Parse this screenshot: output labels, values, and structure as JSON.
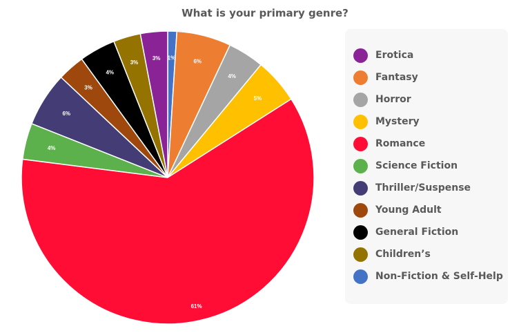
{
  "chart_data": {
    "type": "pie",
    "title": "What is your primary genre?",
    "slices": [
      {
        "label": "Non-Fiction & Self-Help",
        "value": 1,
        "data_label": "1%",
        "color": "#4472c4"
      },
      {
        "label": "Fantasy",
        "value": 6,
        "data_label": "6%",
        "color": "#ed7d31"
      },
      {
        "label": "Horror",
        "value": 4,
        "data_label": "4%",
        "color": "#a5a5a5"
      },
      {
        "label": "Mystery",
        "value": 5,
        "data_label": "5%",
        "color": "#ffc000"
      },
      {
        "label": "Romance",
        "value": 61,
        "data_label": "61%",
        "color": "#ff0d35"
      },
      {
        "label": "Science Fiction",
        "value": 4,
        "data_label": "4%",
        "color": "#5cb14d"
      },
      {
        "label": "Thriller/Suspense",
        "value": 6,
        "data_label": "6%",
        "color": "#443c75"
      },
      {
        "label": "Young Adult",
        "value": 3,
        "data_label": "3%",
        "color": "#9e480e"
      },
      {
        "label": "General Fiction",
        "value": 4,
        "data_label": "4%",
        "color": "#000000"
      },
      {
        "label": "Children’s",
        "value": 3,
        "data_label": "3%",
        "color": "#947300"
      },
      {
        "label": "Erotica",
        "value": 3,
        "data_label": "3%",
        "color": "#8a2496"
      }
    ],
    "legend": {
      "placement": "right",
      "items": [
        {
          "label": "Erotica",
          "color": "#8a2496"
        },
        {
          "label": "Fantasy",
          "color": "#ed7d31"
        },
        {
          "label": "Horror",
          "color": "#a5a5a5"
        },
        {
          "label": "Mystery",
          "color": "#ffc000"
        },
        {
          "label": "Romance",
          "color": "#ff0d35"
        },
        {
          "label": "Science Fiction",
          "color": "#5cb14d"
        },
        {
          "label": "Thriller/Suspense",
          "color": "#443c75"
        },
        {
          "label": "Young Adult",
          "color": "#9e480e"
        },
        {
          "label": "General Fiction",
          "color": "#000000"
        },
        {
          "label": "Children’s",
          "color": "#947300"
        },
        {
          "label": "Non-Fiction & Self-Help",
          "color": "#4472c4"
        }
      ]
    }
  }
}
